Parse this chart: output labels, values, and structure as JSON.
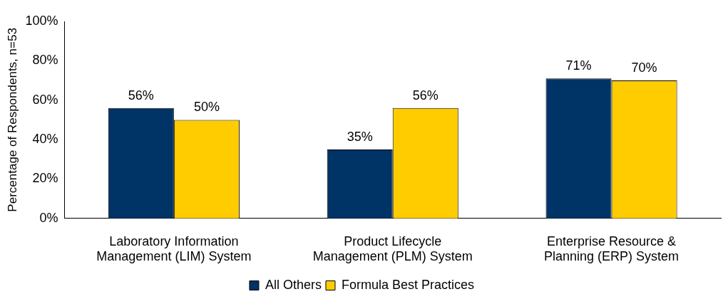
{
  "chart_data": {
    "type": "bar",
    "ylabel": "Percentage of Respondents, n=53",
    "categories": [
      "Laboratory Information\nManagement (LIM) System",
      "Product Lifecycle\nManagement (PLM) System",
      "Enterprise Resource &\nPlanning (ERP) System"
    ],
    "series": [
      {
        "name": "All Others",
        "color": "#003366",
        "values": [
          56,
          35,
          71
        ],
        "value_labels": [
          "56%",
          "35%",
          "71%"
        ]
      },
      {
        "name": "Formula Best Practices",
        "color": "#ffcc00",
        "values": [
          50,
          56,
          70
        ],
        "value_labels": [
          "50%",
          "56%",
          "70%"
        ]
      }
    ],
    "ylim": [
      0,
      100
    ],
    "yticks": [
      {
        "value": 0,
        "label": "0%"
      },
      {
        "value": 20,
        "label": "20%"
      },
      {
        "value": 40,
        "label": "40%"
      },
      {
        "value": 60,
        "label": "60%"
      },
      {
        "value": 80,
        "label": "80%"
      },
      {
        "value": 100,
        "label": "100%"
      }
    ],
    "grid": false,
    "legend": "bottom"
  }
}
